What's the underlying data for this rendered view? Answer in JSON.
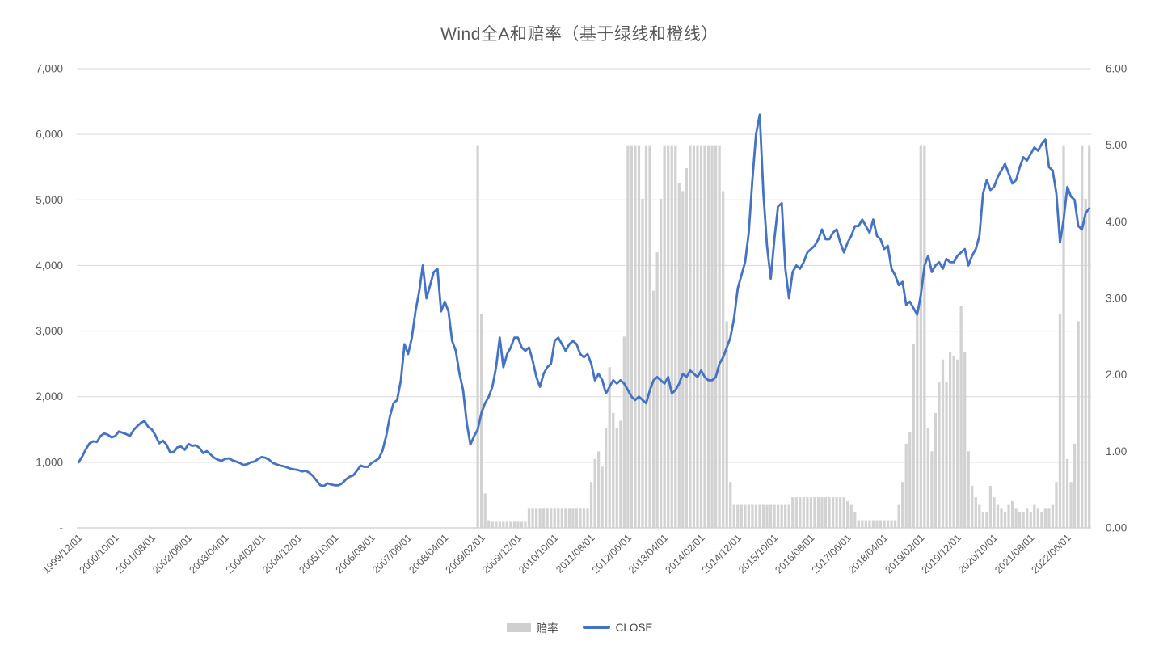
{
  "title": "Wind全A和赔率（基于绿线和橙线）",
  "legend": {
    "odds_label": "赔率",
    "close_label": "CLOSE"
  },
  "colors": {
    "line": "#4472c4",
    "bar": "#d2d2d2",
    "grid": "#d9d9d9",
    "axis": "#bfbfbf",
    "label": "#595959"
  },
  "chart_data": {
    "type": "bar",
    "subtype": "combo-bar-line",
    "x_start": "1999/12/01",
    "x_tick_every": 10,
    "x_tick_labels": [
      "1999/12/01",
      "2000/10/01",
      "2001/08/01",
      "2002/06/01",
      "2003/04/01",
      "2004/02/01",
      "2004/12/01",
      "2005/10/01",
      "2006/08/01",
      "2007/06/01",
      "2008/04/01",
      "2009/02/01",
      "2009/12/01",
      "2010/10/01",
      "2011/08/01",
      "2012/06/01",
      "2013/04/01",
      "2014/02/01",
      "2014/12/01",
      "2015/10/01",
      "2016/08/01",
      "2017/06/01",
      "2018/04/01",
      "2019/02/01",
      "2019/12/01",
      "2020/10/01",
      "2021/08/01",
      "2022/06/01"
    ],
    "left_axis": {
      "min": 0,
      "max": 7000,
      "tick_step": 1000,
      "labels": [
        "7,000",
        "6,000",
        "5,000",
        "4,000",
        "3,000",
        "2,000",
        "1,000",
        "-"
      ]
    },
    "right_axis": {
      "min": 0,
      "max": 6,
      "tick_step": 1,
      "labels": [
        "6.00",
        "5.00",
        "4.00",
        "3.00",
        "2.00",
        "1.00",
        "0.00"
      ]
    },
    "title": "Wind全A和赔率（基于绿线和橙线）",
    "legend_position": "bottom",
    "grid": true,
    "series": [
      {
        "name": "赔率",
        "type": "bar",
        "axis": "right",
        "values": [
          0,
          0,
          0,
          0,
          0,
          0,
          0,
          0,
          0,
          0,
          0,
          0,
          0,
          0,
          0,
          0,
          0,
          0,
          0,
          0,
          0,
          0,
          0,
          0,
          0,
          0,
          0,
          0,
          0,
          0,
          0,
          0,
          0,
          0,
          0,
          0,
          0,
          0,
          0,
          0,
          0,
          0,
          0,
          0,
          0,
          0,
          0,
          0,
          0,
          0,
          0,
          0,
          0,
          0,
          0,
          0,
          0,
          0,
          0,
          0,
          0,
          0,
          0,
          0,
          0,
          0,
          0,
          0,
          0,
          0,
          0,
          0,
          0,
          0,
          0,
          0,
          0,
          0,
          0,
          0,
          0,
          0,
          0,
          0,
          0,
          0,
          0,
          0,
          0,
          0,
          0,
          0,
          0,
          0,
          0,
          0,
          0,
          0,
          0,
          0,
          0,
          0,
          0,
          0,
          0,
          0,
          0,
          0,
          0,
          5.0,
          2.8,
          0.45,
          0.1,
          0.08,
          0.08,
          0.08,
          0.08,
          0.08,
          0.08,
          0.08,
          0.08,
          0.08,
          0.08,
          0.25,
          0.25,
          0.25,
          0.25,
          0.25,
          0.25,
          0.25,
          0.25,
          0.25,
          0.25,
          0.25,
          0.25,
          0.25,
          0.25,
          0.25,
          0.25,
          0.25,
          0.6,
          0.9,
          1.0,
          0.8,
          1.3,
          2.1,
          1.5,
          1.3,
          1.4,
          2.5,
          5.0,
          5.0,
          5.0,
          5.0,
          4.3,
          5.0,
          5.0,
          3.1,
          3.6,
          4.3,
          5.0,
          5.0,
          5.0,
          5.0,
          4.5,
          4.4,
          4.7,
          5.0,
          5.0,
          5.0,
          5.0,
          5.0,
          5.0,
          5.0,
          5.0,
          5.0,
          4.4,
          2.7,
          0.6,
          0.3,
          0.3,
          0.3,
          0.3,
          0.3,
          0.3,
          0.3,
          0.3,
          0.3,
          0.3,
          0.3,
          0.3,
          0.3,
          0.3,
          0.3,
          0.3,
          0.4,
          0.4,
          0.4,
          0.4,
          0.4,
          0.4,
          0.4,
          0.4,
          0.4,
          0.4,
          0.4,
          0.4,
          0.4,
          0.4,
          0.4,
          0.35,
          0.3,
          0.2,
          0.1,
          0.1,
          0.1,
          0.1,
          0.1,
          0.1,
          0.1,
          0.1,
          0.1,
          0.1,
          0.1,
          0.3,
          0.6,
          1.1,
          1.25,
          2.4,
          2.85,
          5.0,
          5.0,
          1.3,
          1.0,
          1.5,
          1.9,
          2.2,
          1.9,
          2.3,
          2.25,
          2.2,
          2.9,
          2.3,
          1.0,
          0.55,
          0.4,
          0.3,
          0.2,
          0.2,
          0.55,
          0.4,
          0.3,
          0.25,
          0.2,
          0.3,
          0.35,
          0.25,
          0.2,
          0.2,
          0.25,
          0.2,
          0.3,
          0.25,
          0.2,
          0.25,
          0.25,
          0.3,
          0.6,
          2.8,
          5.0,
          0.9,
          0.6,
          1.1,
          2.7,
          5.0,
          4.3,
          5.0
        ]
      },
      {
        "name": "CLOSE",
        "type": "line",
        "axis": "left",
        "values": [
          1000,
          1090,
          1200,
          1290,
          1320,
          1310,
          1400,
          1440,
          1420,
          1380,
          1400,
          1470,
          1450,
          1430,
          1400,
          1490,
          1550,
          1600,
          1630,
          1540,
          1500,
          1410,
          1290,
          1330,
          1270,
          1150,
          1160,
          1230,
          1240,
          1190,
          1280,
          1250,
          1260,
          1220,
          1140,
          1170,
          1120,
          1070,
          1040,
          1020,
          1050,
          1060,
          1030,
          1010,
          990,
          960,
          970,
          1000,
          1010,
          1050,
          1080,
          1070,
          1040,
          990,
          970,
          950,
          940,
          920,
          900,
          890,
          880,
          860,
          870,
          840,
          790,
          720,
          650,
          640,
          680,
          660,
          650,
          650,
          680,
          740,
          780,
          800,
          870,
          950,
          930,
          930,
          990,
          1020,
          1060,
          1180,
          1400,
          1700,
          1900,
          1950,
          2250,
          2800,
          2650,
          2900,
          3300,
          3600,
          4000,
          3500,
          3700,
          3900,
          3950,
          3300,
          3450,
          3300,
          2850,
          2700,
          2350,
          2100,
          1600,
          1270,
          1400,
          1500,
          1750,
          1900,
          2000,
          2150,
          2450,
          2900,
          2450,
          2650,
          2750,
          2900,
          2900,
          2750,
          2700,
          2750,
          2550,
          2300,
          2150,
          2350,
          2450,
          2500,
          2850,
          2900,
          2800,
          2700,
          2800,
          2850,
          2800,
          2650,
          2600,
          2650,
          2500,
          2250,
          2350,
          2250,
          2050,
          2150,
          2250,
          2200,
          2250,
          2200,
          2100,
          2000,
          1950,
          2000,
          1950,
          1900,
          2100,
          2250,
          2300,
          2250,
          2200,
          2300,
          2050,
          2100,
          2200,
          2350,
          2300,
          2400,
          2350,
          2300,
          2400,
          2300,
          2250,
          2250,
          2300,
          2500,
          2600,
          2750,
          2900,
          3200,
          3650,
          3850,
          4050,
          4500,
          5300,
          6000,
          6300,
          5100,
          4300,
          3800,
          4400,
          4900,
          4950,
          3950,
          3500,
          3900,
          4000,
          3950,
          4050,
          4200,
          4250,
          4300,
          4400,
          4550,
          4400,
          4400,
          4500,
          4550,
          4350,
          4200,
          4350,
          4450,
          4600,
          4600,
          4700,
          4600,
          4500,
          4700,
          4450,
          4400,
          4250,
          4300,
          3950,
          3850,
          3700,
          3750,
          3400,
          3450,
          3350,
          3250,
          3550,
          4000,
          4150,
          3900,
          4000,
          4050,
          3950,
          4100,
          4050,
          4050,
          4150,
          4200,
          4250,
          4000,
          4150,
          4250,
          4450,
          5100,
          5300,
          5150,
          5200,
          5350,
          5450,
          5550,
          5400,
          5250,
          5300,
          5500,
          5650,
          5600,
          5700,
          5800,
          5750,
          5850,
          5920,
          5500,
          5450,
          5100,
          4350,
          4700,
          5200,
          5050,
          5000,
          4600,
          4550,
          4800,
          4870
        ]
      }
    ]
  }
}
